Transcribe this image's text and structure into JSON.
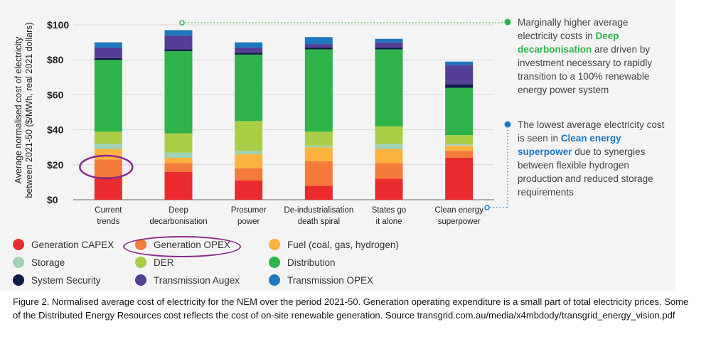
{
  "chart_data": {
    "type": "bar",
    "stacked": true,
    "ylabel": "Average normalised cost of electricity between 2021-50 ($/MWh, real 2021 dollars)",
    "ylim": [
      0,
      100
    ],
    "yticks": [
      "$0",
      "$20",
      "$40",
      "$60",
      "$80",
      "$100"
    ],
    "grid": true,
    "categories": [
      "Current trends",
      "Deep decarbonisation",
      "Prosumer power",
      "De-industrialisation death spiral",
      "States go it alone",
      "Clean energy superpower"
    ],
    "category_lines": [
      [
        "Current",
        "trends"
      ],
      [
        "Deep",
        "decarbonisation"
      ],
      [
        "Prosumer",
        "power"
      ],
      [
        "De-industrialisation",
        "death spiral"
      ],
      [
        "States go",
        "it alone"
      ],
      [
        "Clean energy",
        "superpower"
      ]
    ],
    "series": [
      {
        "name": "Generation CAPEX",
        "color": "#ea2b2e",
        "values": [
          13,
          16,
          11,
          8,
          12,
          24
        ]
      },
      {
        "name": "Generation OPEX",
        "color": "#f47b3a",
        "values": [
          10,
          5,
          7,
          14,
          9,
          4
        ]
      },
      {
        "name": "Fuel (coal, gas, hydrogen)",
        "color": "#fbb23f",
        "values": [
          6,
          3,
          8,
          8,
          8,
          3
        ]
      },
      {
        "name": "Storage",
        "color": "#9fd2b5",
        "values": [
          3,
          3,
          2,
          1,
          3,
          1
        ]
      },
      {
        "name": "DER",
        "color": "#a9ce45",
        "values": [
          7,
          11,
          17,
          8,
          10,
          5
        ]
      },
      {
        "name": "Distribution",
        "color": "#2db34a",
        "values": [
          41,
          47,
          38,
          47,
          44,
          27
        ]
      },
      {
        "name": "System Security",
        "color": "#0d1b45",
        "values": [
          1,
          1,
          1,
          1,
          1,
          2
        ]
      },
      {
        "name": "Transmission Augex",
        "color": "#553e96",
        "values": [
          6,
          8,
          3,
          2,
          3,
          11
        ]
      },
      {
        "name": "Transmission OPEX",
        "color": "#1e78bf",
        "values": [
          3,
          3,
          3,
          4,
          2,
          2
        ]
      }
    ],
    "legend_position": "bottom"
  },
  "annotations": {
    "top": {
      "pre": "Marginally higher average electricity costs in ",
      "highlight": "Deep decarbonisation",
      "post": " are driven by investment necessary to rapidly transition to a 100% renewable energy power system",
      "color": "#2db34a"
    },
    "bottom": {
      "pre": "The lowest average electricity cost is seen in ",
      "highlight": "Clean energy superpower",
      "post": " due to synergies between flexible hydrogen production and reduced storage requirements",
      "color": "#1c78c0"
    }
  },
  "caption": "Figure 2. Normalised average cost of electricity for the NEM over the period 2021-50. Generation operating expenditure is a small part of total electricity prices. Some of the Distributed Energy Resources cost reflects the cost of on-site renewable generation. Source transgrid.com.au/media/x4mbdody/transgrid_energy_vision.pdf"
}
